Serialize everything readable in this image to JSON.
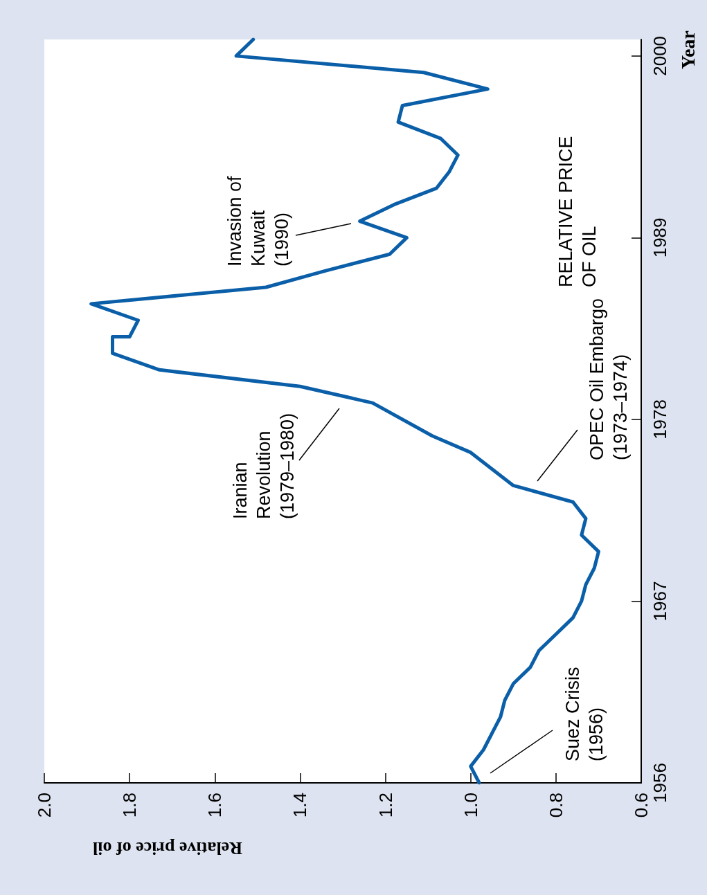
{
  "chart_data": {
    "type": "line",
    "xlabel": "Relative price of oil",
    "ylabel": "Year",
    "xlim": [
      2.0,
      0.6
    ],
    "xticks": [
      {
        "value": 2.0,
        "label": "2.0"
      },
      {
        "value": 1.8,
        "label": "1.8"
      },
      {
        "value": 1.6,
        "label": "1.6"
      },
      {
        "value": 1.4,
        "label": "1.4"
      },
      {
        "value": 1.2,
        "label": "1.2"
      },
      {
        "value": 1.0,
        "label": "1.0"
      },
      {
        "value": 0.8,
        "label": "0.8"
      },
      {
        "value": 0.6,
        "label": "0.6"
      }
    ],
    "ylim": [
      1956,
      2001
    ],
    "yticks": [
      1956,
      1967,
      1978,
      1989,
      2000
    ],
    "marker": "none",
    "series": [
      {
        "color": "#0a5fa8",
        "x": [
          0.98,
          1.0,
          0.97,
          0.95,
          0.93,
          0.92,
          0.9,
          0.86,
          0.84,
          0.8,
          0.76,
          0.74,
          0.73,
          0.71,
          0.7,
          0.74,
          0.73,
          0.76,
          0.9,
          1.0,
          1.09,
          1.23,
          1.4,
          1.73,
          1.84,
          1.84,
          1.8,
          1.78,
          1.89,
          1.48,
          1.34,
          1.19,
          1.15,
          1.26,
          1.18,
          1.08,
          1.05,
          1.03,
          1.07,
          1.17,
          1.16,
          0.96,
          1.11,
          1.55,
          1.51
        ],
        "values": [
          1956,
          1957,
          1958,
          1959,
          1960,
          1961,
          1962,
          1963,
          1964,
          1965,
          1966,
          1967,
          1968,
          1969,
          1970,
          1971,
          1972,
          1973,
          1974,
          1976,
          1977,
          1979,
          1980,
          1981,
          1982,
          1983,
          1983,
          1984,
          1985,
          1986,
          1987,
          1988,
          1989,
          1990,
          1991,
          1992,
          1993,
          1994,
          1995,
          1996,
          1997,
          1998,
          1999,
          2000,
          2001
        ]
      }
    ],
    "annotations": [
      "Suez Crisis (1956)",
      "OPEC Oil Embargo (1973–1974)",
      "Iranian Revolution (1979–1980)",
      "Invasion of Kuwait (1990)",
      "RELATIVE PRICE OF OIL"
    ]
  }
}
